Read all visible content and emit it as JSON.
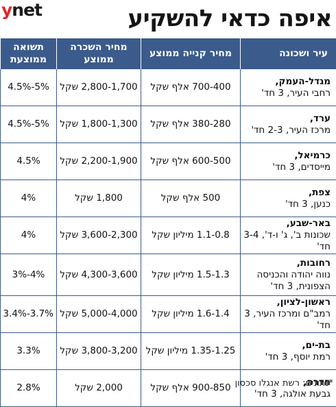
{
  "brand": {
    "logo_y": "y",
    "logo_net": "net"
  },
  "title": "איפה כדאי להשקיע",
  "colors": {
    "header_bg": "#3b5b8c",
    "logo_red": "#e4252b"
  },
  "table": {
    "headers": {
      "city": "עיר ושכונה",
      "buy": "מחיר קנייה ממוצע",
      "rent": "מחיר השכרה ממוצע",
      "yield": "תשואה ממוצעת"
    },
    "rows": [
      {
        "name": "מגדל-העמק,",
        "area": "רחבי העיר, 3 חד'",
        "buy": "700-400 אלף שקל",
        "rent": "2,800-1,700 שקל",
        "yield": "5%-4.5%"
      },
      {
        "name": "ערד,",
        "area": "מרכז העיר, 2-3 חד'",
        "buy": "380-280 אלף שקל",
        "rent": "1,800-1,300 שקל",
        "yield": "5%-4.5%"
      },
      {
        "name": "כרמיאל,",
        "area": "מייסדים, 3 חד'",
        "buy": "600-500 אלף שקל",
        "rent": "2,200-1,900 שקל",
        "yield": "4.5%"
      },
      {
        "name": "צפת,",
        "area": "כנען, 3 חד'",
        "buy": "500 אלף שקל",
        "rent": "1,800 שקל",
        "yield": "4%"
      },
      {
        "name": "באר-שבע,",
        "area": "שכונות ב', ג' ו-ד', 3-4 חד'",
        "buy": "1.1-0.8 מיליון שקל",
        "rent": "3,600-2,300 שקל",
        "yield": "4%"
      },
      {
        "name": "רחובות,",
        "area": "נווה יהודה והכניסה הצפונית, 3 חד'",
        "buy": "1.5-1.3 מיליון שקל",
        "rent": "4,300-3,600 שקל",
        "yield": "4%-3%"
      },
      {
        "name": "ראשון-לציון,",
        "area": "רמב\"ם ומרכז העיר, 3 חד'",
        "buy": "1.6-1.4 מיליון שקל",
        "rent": "5,000-4,000 שקל",
        "yield": "3.7%-3.4%"
      },
      {
        "name": "בת-ים,",
        "area": "רמת יוסף, 3 חד'",
        "buy": "1.35-1.25 מיליון שקל",
        "rent": "3,800-3,200 שקל",
        "yield": "3.3%"
      },
      {
        "name": "חדרה,",
        "area": "גבעת אולגה, 3 חד'",
        "buy": "900-850 אלף שקל",
        "rent": "2,000 שקל",
        "yield": "2.8%"
      }
    ]
  },
  "source": "*נתונים: רשת אנגלו סכסון"
}
